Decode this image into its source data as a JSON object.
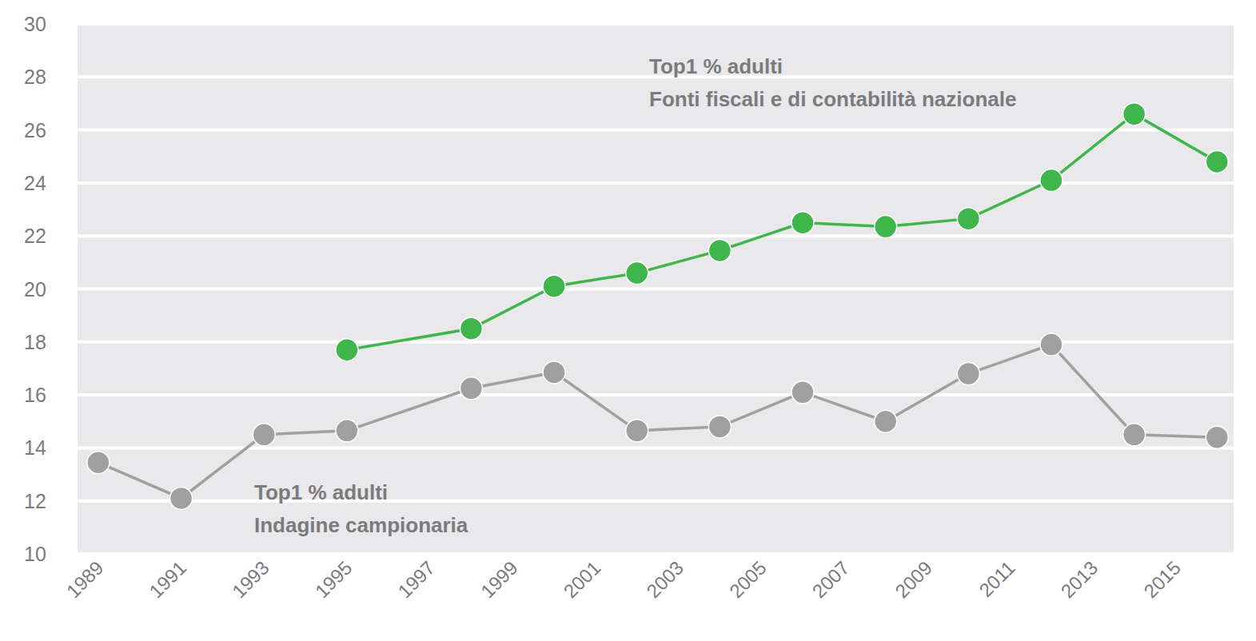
{
  "chart_data": {
    "type": "line",
    "x": [
      1989,
      1991,
      1993,
      1995,
      1998,
      2000,
      2002,
      2004,
      2006,
      2008,
      2010,
      2012,
      2014,
      2016
    ],
    "series": [
      {
        "color": "#a0a0a0",
        "marker": "circle",
        "values": [
          13.45,
          12.1,
          14.5,
          14.65,
          16.25,
          16.85,
          14.65,
          14.8,
          16.1,
          15.0,
          16.8,
          17.9,
          14.5,
          14.4
        ]
      },
      {
        "color": "#3fb54b",
        "marker": "circle",
        "values": [
          null,
          null,
          null,
          17.7,
          18.5,
          20.1,
          20.6,
          21.45,
          22.5,
          22.35,
          22.65,
          24.1,
          26.6,
          24.8
        ]
      }
    ],
    "annotations": [
      {
        "lines": [
          "Top1 % adulti",
          "Fonti fiscali e di contabilità nazionale"
        ]
      },
      {
        "lines": [
          "Top1 % adulti",
          "Indagine campionaria"
        ]
      }
    ],
    "xlim": [
      1988.5,
      2016.4
    ],
    "xticks": [
      1989,
      1991,
      1993,
      1995,
      1997,
      1999,
      2001,
      2003,
      2005,
      2007,
      2009,
      2011,
      2013,
      2015
    ],
    "ylim": [
      10,
      30
    ],
    "yticks": [
      10,
      12,
      14,
      16,
      18,
      20,
      22,
      24,
      26,
      28,
      30
    ],
    "grid": true
  }
}
